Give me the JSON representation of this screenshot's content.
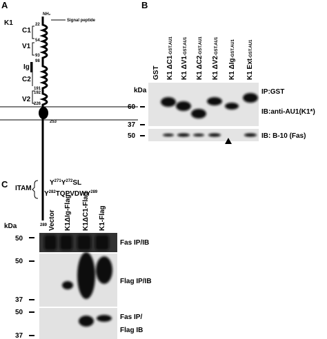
{
  "panel_a": {
    "letter": "A",
    "protein": "K1",
    "n_terminus": "NH₂",
    "signal": "Signal peptide",
    "domains": [
      "C1",
      "V1",
      "Ig",
      "C2",
      "V2"
    ],
    "residues": [
      "22",
      "54",
      "93",
      "98",
      "191",
      "192",
      "226",
      "253",
      "289"
    ],
    "itam": "ITAM",
    "itam_lines": [
      [
        "Y",
        "271",
        "Y",
        "272",
        "SL"
      ],
      [
        "Y",
        "282",
        "TQPVDWY",
        "289"
      ]
    ]
  },
  "panel_b": {
    "letter": "B",
    "lanes": [
      {
        "name": "GST",
        "tag": ""
      },
      {
        "name": "K1 ΔC1",
        "tag": "-GST.AU1"
      },
      {
        "name": "K1 ΔV1",
        "tag": "-GST.AU1"
      },
      {
        "name": "K1 ΔC2",
        "tag": "-GST.AU1"
      },
      {
        "name": "K1 ΔV2",
        "tag": "-GST.AU1"
      },
      {
        "name": "K1 ΔIg",
        "tag": "-GST.AU1"
      },
      {
        "name": "K1 Ext",
        "tag": "-GST.AU1"
      }
    ],
    "kda": "kDa",
    "markers": [
      "60",
      "37",
      "50"
    ],
    "labels": [
      "IP:GST",
      "IB:anti-AU1(K1*)",
      "IB: B-10 (Fas)"
    ]
  },
  "panel_c": {
    "letter": "C",
    "lanes": [
      "Vector",
      "K1ΔIg-Flag",
      "K1ΔC1-Flag",
      "K1-Flag"
    ],
    "kda": "kDa",
    "markers": [
      "50",
      "50",
      "37",
      "50",
      "37"
    ],
    "labels": [
      "Fas IP/IB",
      "Flag IP/IB",
      "Fas IP/",
      "Flag IB"
    ]
  }
}
